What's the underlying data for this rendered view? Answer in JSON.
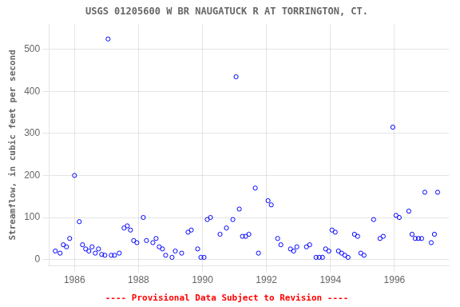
{
  "chart_data": {
    "type": "scatter",
    "title": "USGS 01205600 W BR NAUGATUCK R AT TORRINGTON, CT.",
    "ylabel": "Streamflow, in cubic feet per second",
    "annotations": [
      {
        "text": "---- Provisional Data Subject to Revision ----",
        "color": "red"
      }
    ],
    "color": "blue",
    "marker": "circle",
    "grid": true,
    "xlim": [
      1985.2,
      1997.7
    ],
    "ylim": [
      -15,
      560
    ],
    "xticks": [
      1986,
      1988,
      1990,
      1992,
      1994,
      1996
    ],
    "yticks": [
      0,
      100,
      200,
      300,
      400,
      500
    ],
    "x": [
      1985.4,
      1985.55,
      1985.65,
      1985.75,
      1985.85,
      1986.0,
      1986.15,
      1986.25,
      1986.35,
      1986.45,
      1986.55,
      1986.65,
      1986.75,
      1986.85,
      1986.95,
      1987.05,
      1987.15,
      1987.25,
      1987.4,
      1987.55,
      1987.65,
      1987.75,
      1987.85,
      1987.95,
      1988.15,
      1988.25,
      1988.45,
      1988.55,
      1988.65,
      1988.75,
      1988.85,
      1989.05,
      1989.15,
      1989.35,
      1989.55,
      1989.65,
      1989.85,
      1989.95,
      1990.05,
      1990.15,
      1990.25,
      1990.55,
      1990.75,
      1990.95,
      1991.05,
      1991.15,
      1991.25,
      1991.35,
      1991.45,
      1991.65,
      1991.75,
      1992.05,
      1992.15,
      1992.35,
      1992.45,
      1992.75,
      1992.85,
      1992.95,
      1993.25,
      1993.35,
      1993.55,
      1993.65,
      1993.75,
      1993.85,
      1993.95,
      1994.05,
      1994.15,
      1994.25,
      1994.35,
      1994.45,
      1994.55,
      1994.75,
      1994.85,
      1994.95,
      1995.05,
      1995.35,
      1995.55,
      1995.65,
      1995.95,
      1996.05,
      1996.15,
      1996.45,
      1996.55,
      1996.65,
      1996.75,
      1996.85,
      1996.95,
      1997.15,
      1997.25,
      1997.35
    ],
    "values": [
      20,
      15,
      35,
      30,
      50,
      200,
      90,
      35,
      25,
      20,
      30,
      15,
      25,
      12,
      10,
      525,
      10,
      10,
      15,
      75,
      80,
      70,
      45,
      40,
      100,
      45,
      40,
      50,
      30,
      25,
      10,
      5,
      20,
      15,
      65,
      70,
      25,
      5,
      5,
      95,
      100,
      60,
      75,
      95,
      435,
      120,
      55,
      55,
      60,
      170,
      15,
      140,
      130,
      50,
      35,
      25,
      20,
      30,
      30,
      35,
      5,
      5,
      5,
      25,
      20,
      70,
      65,
      20,
      15,
      10,
      5,
      60,
      55,
      15,
      10,
      95,
      50,
      55,
      315,
      105,
      100,
      115,
      60,
      50,
      50,
      50,
      160,
      40,
      60,
      160
    ]
  }
}
